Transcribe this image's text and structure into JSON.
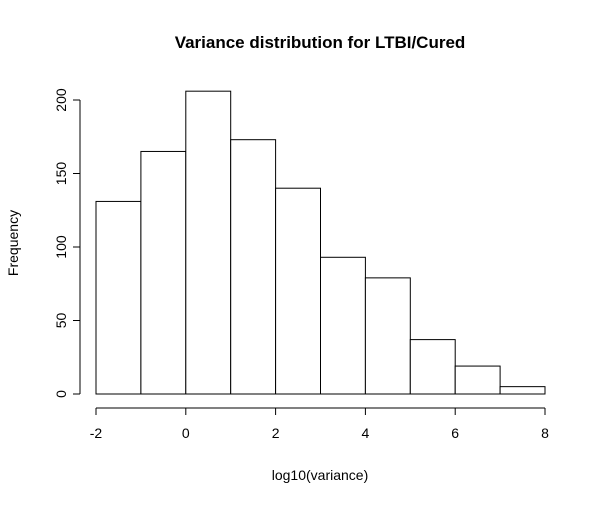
{
  "chart_data": {
    "type": "bar",
    "title": "Variance distribution for LTBI/Cured",
    "xlabel": "log10(variance)",
    "ylabel": "Frequency",
    "bins": [
      {
        "x0": -2,
        "x1": -1,
        "count": 131
      },
      {
        "x0": -1,
        "x1": 0,
        "count": 165
      },
      {
        "x0": 0,
        "x1": 1,
        "count": 206
      },
      {
        "x0": 1,
        "x1": 2,
        "count": 173
      },
      {
        "x0": 2,
        "x1": 3,
        "count": 140
      },
      {
        "x0": 3,
        "x1": 4,
        "count": 93
      },
      {
        "x0": 4,
        "x1": 5,
        "count": 79
      },
      {
        "x0": 5,
        "x1": 6,
        "count": 37
      },
      {
        "x0": 6,
        "x1": 7,
        "count": 19
      },
      {
        "x0": 7,
        "x1": 8,
        "count": 5
      }
    ],
    "xlim": [
      -2,
      8
    ],
    "ylim": [
      0,
      200
    ],
    "x_ticks": [
      -2,
      0,
      2,
      4,
      6,
      8
    ],
    "y_ticks": [
      0,
      50,
      100,
      150,
      200
    ],
    "grid": false,
    "fill_color": "#ffffff",
    "stroke_color": "#000000"
  }
}
